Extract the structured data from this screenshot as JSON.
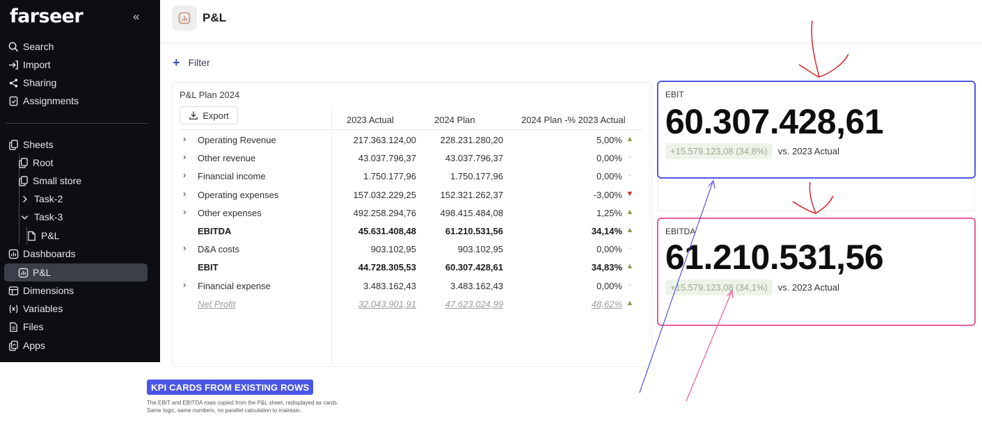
{
  "brand": {
    "name": "farseer"
  },
  "sidebar": {
    "collapse_glyph": "«",
    "top_items": [
      {
        "label": "Search",
        "icon": "search-icon"
      },
      {
        "label": "Import",
        "icon": "import-icon"
      },
      {
        "label": "Sharing",
        "icon": "share-icon"
      },
      {
        "label": "Assignments",
        "icon": "assignment-icon"
      }
    ],
    "tree": {
      "sheets": "Sheets",
      "root": "Root",
      "small_store": "Small store",
      "task2": "Task-2",
      "task3": "Task-3",
      "pl_sheet": "P&L",
      "dashboards": "Dashboards",
      "pl_dashboard": "P&L",
      "dimensions": "Dimensions",
      "variables": "Variables",
      "files": "Files",
      "apps": "Apps"
    }
  },
  "header": {
    "title": "P&L"
  },
  "filter": {
    "label": "Filter"
  },
  "sheet": {
    "title": "P&L Plan 2024",
    "export_label": "Export",
    "columns": [
      "2023 Actual",
      "2024 Plan",
      "2024 Plan -% 2023 Actual"
    ],
    "rows": [
      {
        "label": "Operating Revenue",
        "expand": true,
        "v1": "217.363.124,00",
        "v2": "228.231.280,20",
        "v3": "5,00%",
        "trend": "up"
      },
      {
        "label": "Other revenue",
        "expand": true,
        "v1": "43.037.796,37",
        "v2": "43.037.796,37",
        "v3": "0,00%",
        "trend": "flat"
      },
      {
        "label": "Financial income",
        "expand": true,
        "v1": "1.750.177,96",
        "v2": "1.750.177,96",
        "v3": "0,00%",
        "trend": "flat"
      },
      {
        "label": "Operating expenses",
        "expand": true,
        "v1": "157.032.229,25",
        "v2": "152.321.262,37",
        "v3": "-3,00%",
        "trend": "down"
      },
      {
        "label": "Other expenses",
        "expand": true,
        "v1": "492.258.294,76",
        "v2": "498.415.484,08",
        "v3": "1,25%",
        "trend": "up"
      },
      {
        "label": "EBITDA",
        "expand": false,
        "bold": true,
        "v1": "45.631.408,48",
        "v2": "61.210.531,56",
        "v3": "34,14%",
        "trend": "up"
      },
      {
        "label": "D&A costs",
        "expand": true,
        "v1": "903.102,95",
        "v2": "903.102,95",
        "v3": "0,00%",
        "trend": "flat"
      },
      {
        "label": "EBIT",
        "expand": false,
        "bold": true,
        "v1": "44.728.305,53",
        "v2": "60.307.428,61",
        "v3": "34,83%",
        "trend": "up"
      },
      {
        "label": "Financial expense",
        "expand": true,
        "v1": "3.483.162,43",
        "v2": "3.483.162,43",
        "v3": "0,00%",
        "trend": "flat"
      },
      {
        "label": "Net Profit",
        "expand": false,
        "net": true,
        "v1": "32.043.901,91",
        "v2": "47.623.024,99",
        "v3": "48,62%",
        "trend": "up"
      }
    ]
  },
  "kpi": {
    "ebit": {
      "label": "EBIT",
      "value": "60.307.428,61",
      "delta": "+15.579.123,08 (34,8%)",
      "compare": "vs. 2023 Actual",
      "border": "#4c56e6"
    },
    "ebitda": {
      "label": "EBITDA",
      "value": "61.210.531,56",
      "delta": "+15.579.123,08 (34,1%)",
      "compare": "vs. 2023 Actual",
      "border": "#e95a9c"
    }
  },
  "caption": {
    "tag": "KPI CARDS FROM EXISTING ROWS",
    "line1": "The EBIT and EBITDA rows copied from the P&L sheet, redisplayed as cards.",
    "line2": "Same logic, same numbers, no parallel calculation to maintain."
  },
  "colors": {
    "sidebar_bg": "#0c0e13",
    "accent_blue": "#4c56e6",
    "accent_pink": "#e95a9c",
    "arrow_red": "#d8141a",
    "trend_up": "#7fa04a",
    "trend_down": "#d22a2a"
  },
  "trend_glyphs": {
    "up": "▲",
    "down": "▼",
    "flat": "-"
  }
}
